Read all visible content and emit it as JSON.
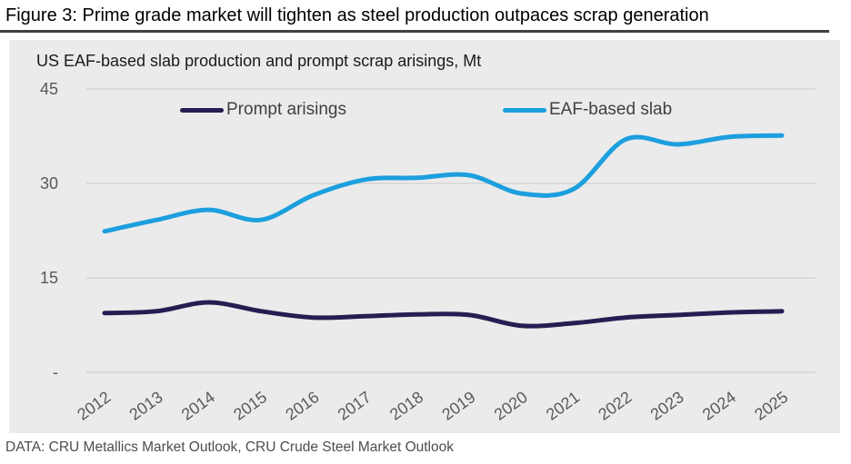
{
  "figure": {
    "title": "Figure 3: Prime grade market will tighten as steel production outpaces scrap generation",
    "source": "DATA: CRU Metallics Market Outlook, CRU Crude Steel Market Outlook"
  },
  "chart_data": {
    "type": "line",
    "title": "US EAF-based slab production and prompt scrap arisings, Mt",
    "x": [
      2012,
      2013,
      2014,
      2015,
      2016,
      2017,
      2018,
      2019,
      2020,
      2021,
      2022,
      2023,
      2024,
      2025
    ],
    "series": [
      {
        "name": "Prompt arisings",
        "color": "#251e52",
        "values": [
          9.4,
          9.7,
          11.1,
          9.7,
          8.7,
          8.9,
          9.2,
          9.1,
          7.4,
          7.8,
          8.7,
          9.1,
          9.5,
          9.7
        ]
      },
      {
        "name": "EAF-based slab",
        "color": "#1c9fde",
        "values": [
          22.4,
          24.2,
          25.8,
          24.2,
          28.1,
          30.6,
          30.9,
          31.3,
          28.4,
          29.1,
          37.0,
          36.2,
          37.4,
          37.6
        ]
      }
    ],
    "ylim": [
      0,
      45
    ],
    "yticks": [
      {
        "value": 45,
        "label": "45"
      },
      {
        "value": 30,
        "label": "30"
      },
      {
        "value": 15,
        "label": "15"
      },
      {
        "value": 0,
        "label": "-"
      }
    ],
    "grid": "horizontal-only",
    "legend_position": "top-inside"
  },
  "colors": {
    "panel_bg": "#ebebeb",
    "gridline": "#c8c8c8",
    "axis_text": "#595959",
    "legend_text": "#404040",
    "title_rule": "#404040",
    "footer_text": "#4d4d4d"
  }
}
